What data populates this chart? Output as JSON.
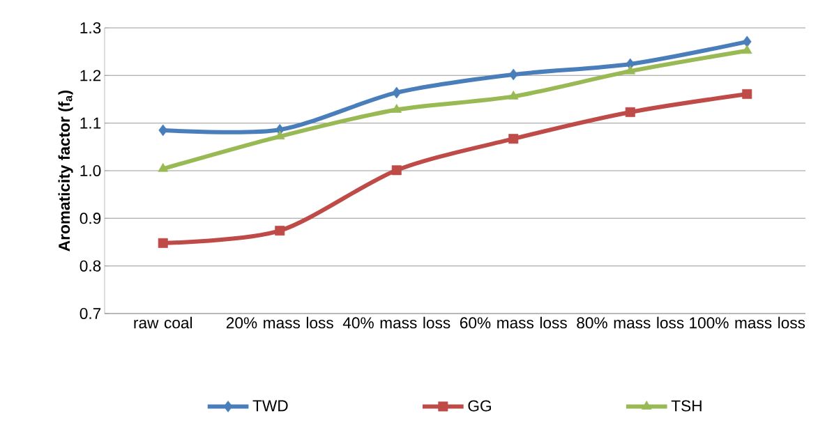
{
  "chart_data": {
    "type": "line",
    "ylabel": "Aromaticity factor (f$_{a}$)",
    "categories": [
      "raw coal",
      "20% mass loss",
      "40% mass loss",
      "60% mass loss",
      "80% mass loss",
      "100% mass loss"
    ],
    "series": [
      {
        "name": "TWD",
        "color": "#4a7ebb",
        "marker": "diamond",
        "values": [
          1.085,
          1.086,
          1.164,
          1.202,
          1.224,
          1.271
        ]
      },
      {
        "name": "GG",
        "color": "#be4b48",
        "marker": "square",
        "values": [
          0.848,
          0.874,
          1.001,
          1.067,
          1.123,
          1.161
        ]
      },
      {
        "name": "TSH",
        "color": "#98b954",
        "marker": "triangle",
        "values": [
          1.004,
          1.072,
          1.128,
          1.156,
          1.209,
          1.252
        ]
      }
    ],
    "ylim": [
      0.7,
      1.3
    ],
    "yticks": [
      {
        "value": 0.7,
        "label": "0.7"
      },
      {
        "value": 0.8,
        "label": "0.8"
      },
      {
        "value": 0.9,
        "label": "0.9"
      },
      {
        "value": 1.0,
        "label": "1.0"
      },
      {
        "value": 1.1,
        "label": "1.1"
      },
      {
        "value": 1.2,
        "label": "1.2"
      },
      {
        "value": 1.3,
        "label": "1.3"
      }
    ],
    "grid": "y",
    "legend": "bottom",
    "line_style": "solid"
  }
}
